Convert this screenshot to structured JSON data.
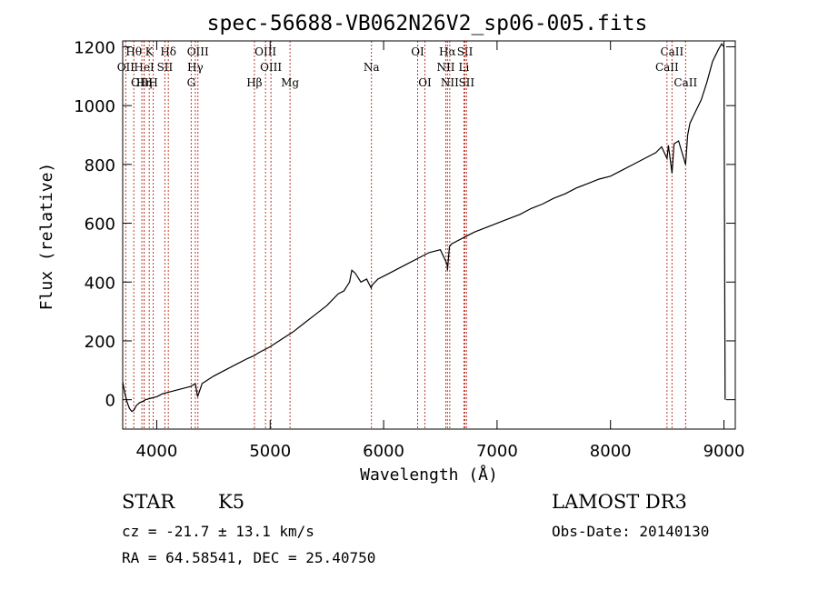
{
  "chart_data": {
    "type": "line",
    "title": "spec-56688-VB062N26V2_sp06-005.fits",
    "xlabel": "Wavelength (Å)",
    "ylabel": "Flux (relative)",
    "xlim": [
      3700,
      9100
    ],
    "ylim": [
      -100,
      1220
    ],
    "x_ticks": [
      4000,
      5000,
      6000,
      7000,
      8000,
      9000
    ],
    "y_ticks": [
      0,
      200,
      400,
      600,
      800,
      1000,
      1200
    ],
    "x_tick_labels": [
      "4000",
      "5000",
      "6000",
      "7000",
      "8000",
      "9000"
    ],
    "y_tick_labels": [
      "0",
      "200",
      "400",
      "600",
      "800",
      "1000",
      "1200"
    ],
    "line_color": "#000000",
    "marker_color": "#c0392b",
    "series": [
      {
        "name": "flux",
        "x": [
          3700,
          3720,
          3740,
          3760,
          3780,
          3800,
          3820,
          3850,
          3880,
          3900,
          3950,
          4000,
          4050,
          4100,
          4150,
          4200,
          4250,
          4300,
          4340,
          4360,
          4400,
          4500,
          4600,
          4700,
          4800,
          4861,
          4900,
          5000,
          5100,
          5200,
          5300,
          5400,
          5500,
          5600,
          5650,
          5700,
          5720,
          5750,
          5800,
          5850,
          5890,
          5900,
          5950,
          6000,
          6100,
          6200,
          6300,
          6400,
          6500,
          6560,
          6563,
          6580,
          6600,
          6700,
          6800,
          6900,
          7000,
          7100,
          7200,
          7300,
          7400,
          7500,
          7600,
          7700,
          7800,
          7900,
          8000,
          8100,
          8200,
          8300,
          8400,
          8450,
          8498,
          8510,
          8542,
          8560,
          8600,
          8662,
          8680,
          8700,
          8750,
          8800,
          8850,
          8900,
          8950,
          8980,
          9000,
          9010
        ],
        "y": [
          60,
          20,
          -10,
          -30,
          -40,
          -35,
          -20,
          -10,
          -5,
          0,
          5,
          10,
          20,
          25,
          30,
          35,
          40,
          45,
          55,
          10,
          55,
          80,
          100,
          120,
          140,
          150,
          160,
          180,
          205,
          230,
          260,
          290,
          320,
          360,
          370,
          400,
          440,
          430,
          400,
          410,
          380,
          390,
          410,
          420,
          440,
          460,
          480,
          500,
          510,
          460,
          440,
          520,
          530,
          550,
          570,
          585,
          600,
          615,
          630,
          650,
          665,
          685,
          700,
          720,
          735,
          750,
          760,
          780,
          800,
          820,
          840,
          860,
          820,
          865,
          770,
          870,
          880,
          800,
          900,
          940,
          980,
          1020,
          1080,
          1150,
          1190,
          1210,
          1200,
          0
        ]
      }
    ],
    "lines": {
      "row1": [
        {
          "label": "Hθ",
          "line_x": 3798
        },
        {
          "label": "K",
          "line_x": 3934
        },
        {
          "label": "Hδ",
          "line_x": 4102
        },
        {
          "label": "OIII",
          "line_x": 4363
        },
        {
          "label": "OIII",
          "line_x": 4959
        },
        {
          "label": "OI",
          "line_x": 6300
        },
        {
          "label": "Hα",
          "line_x": 6563
        },
        {
          "label": "SII",
          "line_x": 6717
        },
        {
          "label": "CaII",
          "line_x": 8542
        }
      ],
      "row2": [
        {
          "label": "OII",
          "line_x": 3727
        },
        {
          "label": "HeI",
          "line_x": 3889
        },
        {
          "label": "SII",
          "line_x": 4072
        },
        {
          "label": "Hγ",
          "line_x": 4340
        },
        {
          "label": "OIII",
          "line_x": 5007
        },
        {
          "label": "Na",
          "line_x": 5893
        },
        {
          "label": "NII",
          "line_x": 6548
        },
        {
          "label": "Li",
          "line_x": 6708
        },
        {
          "label": "CaII",
          "line_x": 8498
        }
      ],
      "row3": [
        {
          "label": "OIII",
          "line_x": 3869
        },
        {
          "label": "Hη",
          "line_x": 3889
        },
        {
          "label": "H",
          "line_x": 3969
        },
        {
          "label": "G",
          "line_x": 4304
        },
        {
          "label": "Hβ",
          "line_x": 4861
        },
        {
          "label": "Mg",
          "line_x": 5175
        },
        {
          "label": "OI",
          "line_x": 6364
        },
        {
          "label": "NII",
          "line_x": 6583
        },
        {
          "label": "SII",
          "line_x": 6731
        },
        {
          "label": "CaII",
          "line_x": 8662
        }
      ]
    }
  },
  "info": {
    "object_class": "STAR",
    "subclass": "K5",
    "cz": "cz = -21.7 ± 13.1 km/s",
    "coords": "RA =  64.58541, DEC =  25.40750",
    "survey": "LAMOST DR3",
    "obs_date": "Obs-Date: 20140130"
  }
}
